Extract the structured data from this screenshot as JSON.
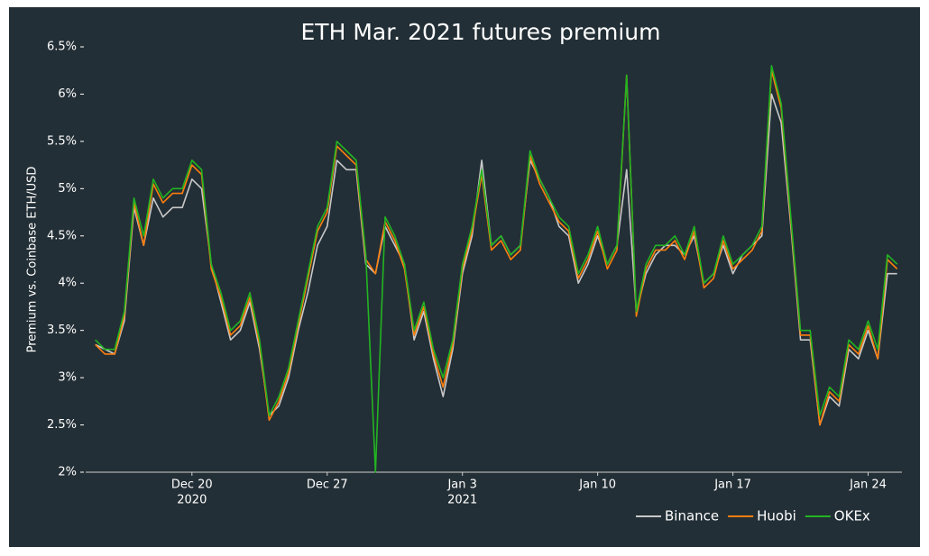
{
  "chart_data": {
    "type": "line",
    "title": "ETH Mar. 2021 futures premium",
    "y_label": "Premium vs. Coinbase ETH/USD",
    "x": [
      "2020-12-15T00:00",
      "2020-12-15T12:00",
      "2020-12-16T00:00",
      "2020-12-16T12:00",
      "2020-12-17T00:00",
      "2020-12-17T12:00",
      "2020-12-18T00:00",
      "2020-12-18T12:00",
      "2020-12-19T00:00",
      "2020-12-19T12:00",
      "2020-12-20T00:00",
      "2020-12-20T12:00",
      "2020-12-21T00:00",
      "2020-12-21T12:00",
      "2020-12-22T00:00",
      "2020-12-22T12:00",
      "2020-12-23T00:00",
      "2020-12-23T12:00",
      "2020-12-24T00:00",
      "2020-12-24T12:00",
      "2020-12-25T00:00",
      "2020-12-25T12:00",
      "2020-12-26T00:00",
      "2020-12-26T12:00",
      "2020-12-27T00:00",
      "2020-12-27T12:00",
      "2020-12-28T00:00",
      "2020-12-28T12:00",
      "2020-12-29T00:00",
      "2020-12-29T12:00",
      "2020-12-30T00:00",
      "2020-12-30T12:00",
      "2020-12-31T00:00",
      "2020-12-31T12:00",
      "2021-01-01T00:00",
      "2021-01-01T12:00",
      "2021-01-02T00:00",
      "2021-01-02T12:00",
      "2021-01-03T00:00",
      "2021-01-03T12:00",
      "2021-01-04T00:00",
      "2021-01-04T12:00",
      "2021-01-05T00:00",
      "2021-01-05T12:00",
      "2021-01-06T00:00",
      "2021-01-06T12:00",
      "2021-01-07T00:00",
      "2021-01-07T12:00",
      "2021-01-08T00:00",
      "2021-01-08T12:00",
      "2021-01-09T00:00",
      "2021-01-09T12:00",
      "2021-01-10T00:00",
      "2021-01-10T12:00",
      "2021-01-11T00:00",
      "2021-01-11T12:00",
      "2021-01-12T00:00",
      "2021-01-12T12:00",
      "2021-01-13T00:00",
      "2021-01-13T12:00",
      "2021-01-14T00:00",
      "2021-01-14T12:00",
      "2021-01-15T00:00",
      "2021-01-15T12:00",
      "2021-01-16T00:00",
      "2021-01-16T12:00",
      "2021-01-17T00:00",
      "2021-01-17T12:00",
      "2021-01-18T00:00",
      "2021-01-18T12:00",
      "2021-01-19T00:00",
      "2021-01-19T12:00",
      "2021-01-20T00:00",
      "2021-01-20T12:00",
      "2021-01-21T00:00",
      "2021-01-21T12:00",
      "2021-01-22T00:00",
      "2021-01-22T12:00",
      "2021-01-23T00:00",
      "2021-01-23T12:00",
      "2021-01-24T00:00",
      "2021-01-24T12:00",
      "2021-01-25T00:00",
      "2021-01-25T12:00"
    ],
    "series": [
      {
        "name": "Binance",
        "color": "#c8c8c8",
        "values": [
          3.35,
          3.3,
          3.25,
          3.6,
          4.8,
          4.4,
          4.9,
          4.7,
          4.8,
          4.8,
          5.1,
          5.0,
          4.2,
          3.8,
          3.4,
          3.5,
          3.8,
          3.3,
          2.6,
          2.7,
          3.0,
          3.5,
          3.9,
          4.4,
          4.6,
          5.3,
          5.2,
          5.2,
          4.2,
          4.1,
          4.6,
          4.4,
          4.2,
          3.4,
          3.7,
          3.2,
          2.8,
          3.3,
          4.1,
          4.5,
          5.3,
          4.4,
          4.5,
          4.3,
          4.4,
          5.3,
          5.1,
          4.9,
          4.6,
          4.5,
          4.0,
          4.2,
          4.5,
          4.2,
          4.4,
          5.2,
          3.7,
          4.1,
          4.3,
          4.4,
          4.4,
          4.3,
          4.5,
          4.0,
          4.1,
          4.4,
          4.1,
          4.3,
          4.4,
          4.5,
          6.0,
          5.7,
          4.6,
          3.4,
          3.4,
          2.5,
          2.8,
          2.7,
          3.3,
          3.2,
          3.5,
          3.2,
          4.1,
          4.1
        ]
      },
      {
        "name": "Huobi",
        "color": "#ff7f0e",
        "values": [
          3.35,
          3.25,
          3.25,
          3.65,
          4.85,
          4.4,
          5.05,
          4.85,
          4.95,
          4.95,
          5.25,
          5.15,
          4.15,
          3.85,
          3.45,
          3.55,
          3.85,
          3.35,
          2.55,
          2.75,
          3.05,
          3.55,
          4.05,
          4.55,
          4.75,
          5.45,
          5.35,
          5.25,
          4.25,
          4.1,
          4.65,
          4.45,
          4.15,
          3.45,
          3.75,
          3.25,
          2.9,
          3.35,
          4.15,
          4.55,
          5.15,
          4.35,
          4.45,
          4.25,
          4.35,
          5.35,
          5.05,
          4.85,
          4.65,
          4.55,
          4.05,
          4.25,
          4.55,
          4.15,
          4.35,
          6.2,
          3.65,
          4.15,
          4.35,
          4.35,
          4.45,
          4.25,
          4.55,
          3.95,
          4.05,
          4.45,
          4.15,
          4.25,
          4.35,
          4.55,
          6.25,
          5.85,
          4.65,
          3.45,
          3.45,
          2.5,
          2.85,
          2.75,
          3.35,
          3.25,
          3.55,
          3.2,
          4.25,
          4.15
        ]
      },
      {
        "name": "OKEx",
        "color": "#22b422",
        "values": [
          3.4,
          3.3,
          3.3,
          3.7,
          4.9,
          4.5,
          5.1,
          4.9,
          5.0,
          5.0,
          5.3,
          5.2,
          4.2,
          3.9,
          3.5,
          3.6,
          3.9,
          3.4,
          2.6,
          2.8,
          3.1,
          3.6,
          4.1,
          4.6,
          4.8,
          5.5,
          5.4,
          5.3,
          4.3,
          2.0,
          4.7,
          4.5,
          4.2,
          3.5,
          3.8,
          3.3,
          3.0,
          3.4,
          4.2,
          4.6,
          5.2,
          4.4,
          4.5,
          4.3,
          4.4,
          5.4,
          5.1,
          4.9,
          4.7,
          4.6,
          4.1,
          4.3,
          4.6,
          4.2,
          4.4,
          6.2,
          3.7,
          4.2,
          4.4,
          4.4,
          4.5,
          4.3,
          4.6,
          4.0,
          4.1,
          4.5,
          4.2,
          4.3,
          4.4,
          4.6,
          6.3,
          5.9,
          4.7,
          3.5,
          3.5,
          2.6,
          2.9,
          2.8,
          3.4,
          3.3,
          3.6,
          3.3,
          4.3,
          4.2
        ]
      }
    ],
    "xlim": [
      "2020-12-14T12:00",
      "2021-01-25T18:00"
    ],
    "xticks": [
      {
        "value": "2020-12-20T00:00",
        "label": "Dec 20",
        "sublabel": "2020"
      },
      {
        "value": "2020-12-27T00:00",
        "label": "Dec 27"
      },
      {
        "value": "2021-01-03T00:00",
        "label": "Jan 3",
        "sublabel": "2021"
      },
      {
        "value": "2021-01-10T00:00",
        "label": "Jan 10"
      },
      {
        "value": "2021-01-17T00:00",
        "label": "Jan 17"
      },
      {
        "value": "2021-01-24T00:00",
        "label": "Jan 24"
      }
    ],
    "ylim": [
      2,
      6.5
    ],
    "yticks": [
      {
        "value": 2,
        "label": "2%"
      },
      {
        "value": 2.5,
        "label": "2.5%"
      },
      {
        "value": 3,
        "label": "3%"
      },
      {
        "value": 3.5,
        "label": "3.5%"
      },
      {
        "value": 4,
        "label": "4%"
      },
      {
        "value": 4.5,
        "label": "4.5%"
      },
      {
        "value": 5,
        "label": "5%"
      },
      {
        "value": 5.5,
        "label": "5.5%"
      },
      {
        "value": 6,
        "label": "6%"
      },
      {
        "value": 6.5,
        "label": "6.5%"
      }
    ],
    "grid": false,
    "legend": "lower right"
  }
}
